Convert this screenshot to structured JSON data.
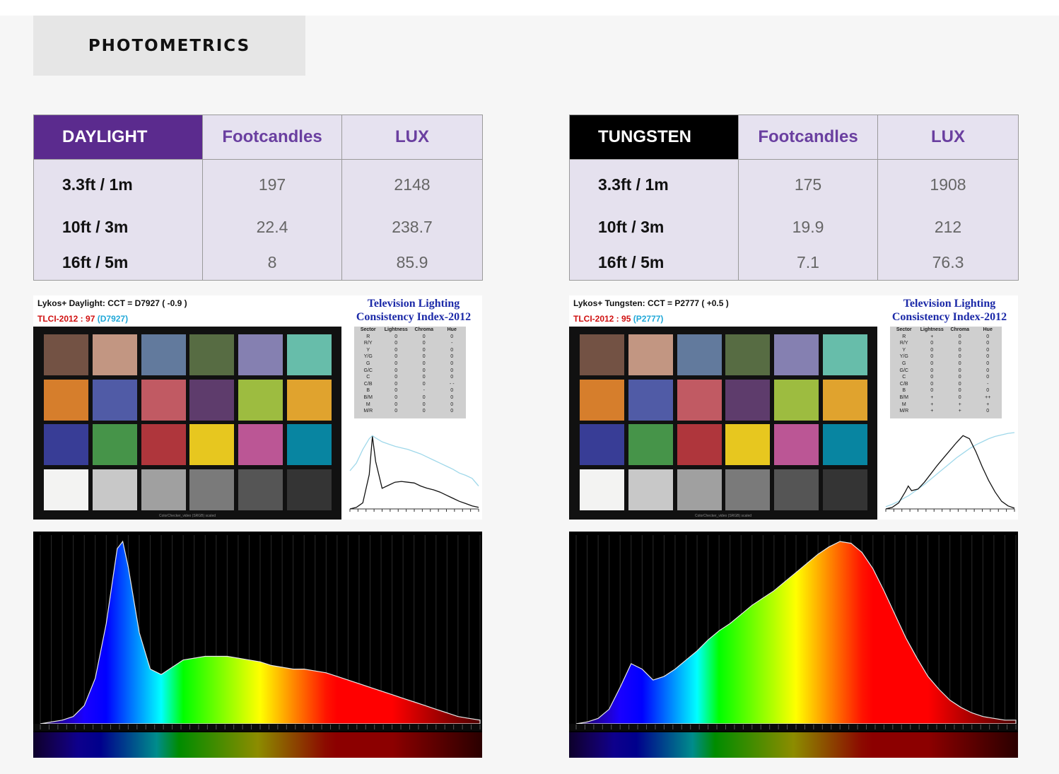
{
  "section_title": "PHOTOMETRICS",
  "photometric_tables": [
    {
      "label": "DAYLIGHT",
      "header_color": "#5b2b8e",
      "col_footcandles": "Footcandles",
      "col_lux": "LUX",
      "rows": [
        {
          "distance": "3.3ft / 1m",
          "footcandles": "197",
          "lux": "2148"
        },
        {
          "distance": "10ft / 3m",
          "footcandles": "22.4",
          "lux": "238.7"
        },
        {
          "distance": "16ft / 5m",
          "footcandles": "8",
          "lux": "85.9"
        }
      ]
    },
    {
      "label": "TUNGSTEN",
      "header_color": "#000000",
      "col_footcandles": "Footcandles",
      "col_lux": "LUX",
      "rows": [
        {
          "distance": "3.3ft / 1m",
          "footcandles": "175",
          "lux": "1908"
        },
        {
          "distance": "10ft / 3m",
          "footcandles": "19.9",
          "lux": "212"
        },
        {
          "distance": "16ft / 5m",
          "footcandles": "7.1",
          "lux": "76.3"
        }
      ]
    }
  ],
  "tlci_reports": [
    {
      "title": "Lykos+ Daylight: CCT = D7927  ( -0.9 )",
      "score_label": "TLCI-2012 :",
      "score": "97",
      "cct": "(D7927)",
      "brand_line1": "Television Lighting",
      "brand_line2": "Consistency Index-2012",
      "checker_caption": "ColorChecker_video (SRGB) scaled",
      "sector_table": {
        "headers": [
          "Sector",
          "Lightness",
          "Chroma",
          "Hue"
        ],
        "rows": [
          [
            "R",
            "0",
            "0",
            "0"
          ],
          [
            "R/Y",
            "0",
            "0",
            "-"
          ],
          [
            "Y",
            "0",
            "0",
            "0"
          ],
          [
            "Y/G",
            "0",
            "0",
            "0"
          ],
          [
            "G",
            "0",
            "0",
            "0"
          ],
          [
            "G/C",
            "0",
            "0",
            "0"
          ],
          [
            "C",
            "0",
            "0",
            "0"
          ],
          [
            "C/B",
            "0",
            "0",
            "- -"
          ],
          [
            "B",
            "0",
            "-",
            "0"
          ],
          [
            "B/M",
            "0",
            "0",
            "0"
          ],
          [
            "M",
            "0",
            "0",
            "0"
          ],
          [
            "M/R",
            "0",
            "0",
            "0"
          ]
        ]
      }
    },
    {
      "title": "Lykos+ Tungsten: CCT = P2777  ( +0.5 )",
      "score_label": "TLCI-2012 :",
      "score": "95",
      "cct": "(P2777)",
      "brand_line1": "Television Lighting",
      "brand_line2": "Consistency Index-2012",
      "checker_caption": "ColorChecker_video (SRGB) scaled",
      "sector_table": {
        "headers": [
          "Sector",
          "Lightness",
          "Chroma",
          "Hue"
        ],
        "rows": [
          [
            "R",
            "+",
            "0",
            "0"
          ],
          [
            "R/Y",
            "0",
            "0",
            "0"
          ],
          [
            "Y",
            "0",
            "0",
            "0"
          ],
          [
            "Y/G",
            "0",
            "0",
            "0"
          ],
          [
            "G",
            "0",
            "0",
            "0"
          ],
          [
            "G/C",
            "0",
            "0",
            "0"
          ],
          [
            "C",
            "0",
            "0",
            "0"
          ],
          [
            "C/B",
            "0",
            "0",
            "-"
          ],
          [
            "B",
            "0",
            "0",
            "0"
          ],
          [
            "B/M",
            "+",
            "0",
            "++"
          ],
          [
            "M",
            "+",
            "+",
            "+"
          ],
          [
            "M/R",
            "+",
            "+",
            "0"
          ]
        ]
      }
    }
  ],
  "checker_patches": [
    "#735244",
    "#c29682",
    "#627a9d",
    "#576c43",
    "#8580b1",
    "#67bdaa",
    "#d67e2c",
    "#505ba6",
    "#c15a63",
    "#5e3c6c",
    "#9dbc40",
    "#e0a32e",
    "#383d96",
    "#469449",
    "#af363c",
    "#e7c71f",
    "#bb5695",
    "#0885a1",
    "#f3f3f2",
    "#c8c8c8",
    "#a0a0a0",
    "#7a7a7a",
    "#555555",
    "#343434"
  ],
  "chart_data": [
    {
      "type": "line",
      "name": "daylight-tlci-mini-spd",
      "x": [
        380,
        400,
        420,
        440,
        450,
        460,
        480,
        500,
        520,
        540,
        560,
        580,
        600,
        620,
        640,
        660,
        680,
        700,
        720,
        740,
        760,
        780
      ],
      "series": [
        {
          "values": [
            0.0,
            0.02,
            0.08,
            0.45,
            0.95,
            0.62,
            0.27,
            0.31,
            0.35,
            0.36,
            0.35,
            0.34,
            0.3,
            0.27,
            0.25,
            0.22,
            0.18,
            0.14,
            0.1,
            0.07,
            0.04,
            0.02
          ],
          "color": "#111111"
        },
        {
          "values": [
            0.5,
            0.6,
            0.78,
            0.92,
            0.96,
            0.93,
            0.88,
            0.85,
            0.82,
            0.8,
            0.78,
            0.75,
            0.72,
            0.68,
            0.64,
            0.6,
            0.56,
            0.52,
            0.47,
            0.44,
            0.4,
            0.3
          ],
          "color": "#9fd8ea"
        }
      ]
    },
    {
      "type": "line",
      "name": "tungsten-tlci-mini-spd",
      "x": [
        380,
        400,
        420,
        440,
        450,
        460,
        480,
        500,
        520,
        540,
        560,
        580,
        600,
        620,
        640,
        660,
        680,
        700,
        720,
        740,
        760,
        780
      ],
      "series": [
        {
          "values": [
            0.0,
            0.02,
            0.08,
            0.22,
            0.3,
            0.24,
            0.26,
            0.35,
            0.46,
            0.57,
            0.67,
            0.77,
            0.87,
            0.96,
            0.92,
            0.75,
            0.55,
            0.37,
            0.22,
            0.1,
            0.04,
            0.01
          ],
          "color": "#111111"
        },
        {
          "values": [
            0.03,
            0.06,
            0.1,
            0.15,
            0.17,
            0.2,
            0.26,
            0.32,
            0.39,
            0.46,
            0.53,
            0.6,
            0.67,
            0.73,
            0.79,
            0.84,
            0.88,
            0.92,
            0.95,
            0.97,
            0.99,
            1.0
          ],
          "color": "#9fd8ea"
        }
      ]
    },
    {
      "type": "area",
      "name": "daylight-spectrum",
      "x": [
        380,
        390,
        400,
        410,
        420,
        430,
        440,
        450,
        455,
        460,
        470,
        480,
        490,
        500,
        510,
        520,
        530,
        540,
        550,
        560,
        570,
        580,
        590,
        600,
        610,
        620,
        630,
        640,
        650,
        660,
        670,
        680,
        690,
        700,
        710,
        720,
        730,
        740,
        750,
        760,
        770,
        780
      ],
      "series": [
        {
          "values": [
            0.0,
            0.01,
            0.02,
            0.04,
            0.1,
            0.25,
            0.55,
            0.96,
            1.0,
            0.86,
            0.5,
            0.3,
            0.27,
            0.31,
            0.35,
            0.36,
            0.37,
            0.37,
            0.37,
            0.36,
            0.35,
            0.34,
            0.32,
            0.31,
            0.3,
            0.3,
            0.29,
            0.28,
            0.26,
            0.24,
            0.22,
            0.2,
            0.18,
            0.16,
            0.14,
            0.12,
            0.1,
            0.08,
            0.06,
            0.04,
            0.03,
            0.02
          ]
        }
      ],
      "ylim": [
        0,
        1
      ]
    },
    {
      "type": "area",
      "name": "tungsten-spectrum",
      "x": [
        380,
        390,
        400,
        410,
        420,
        430,
        440,
        450,
        460,
        470,
        480,
        490,
        500,
        510,
        520,
        530,
        540,
        550,
        560,
        570,
        580,
        590,
        600,
        610,
        620,
        630,
        640,
        650,
        660,
        670,
        680,
        690,
        700,
        710,
        720,
        730,
        740,
        750,
        760,
        770,
        780
      ],
      "series": [
        {
          "values": [
            0.0,
            0.01,
            0.03,
            0.08,
            0.2,
            0.33,
            0.3,
            0.24,
            0.26,
            0.3,
            0.35,
            0.4,
            0.46,
            0.51,
            0.55,
            0.6,
            0.65,
            0.69,
            0.73,
            0.78,
            0.83,
            0.88,
            0.93,
            0.97,
            1.0,
            0.99,
            0.94,
            0.85,
            0.73,
            0.6,
            0.47,
            0.36,
            0.26,
            0.19,
            0.13,
            0.09,
            0.06,
            0.04,
            0.03,
            0.02,
            0.02
          ]
        }
      ],
      "ylim": [
        0,
        1
      ]
    }
  ]
}
